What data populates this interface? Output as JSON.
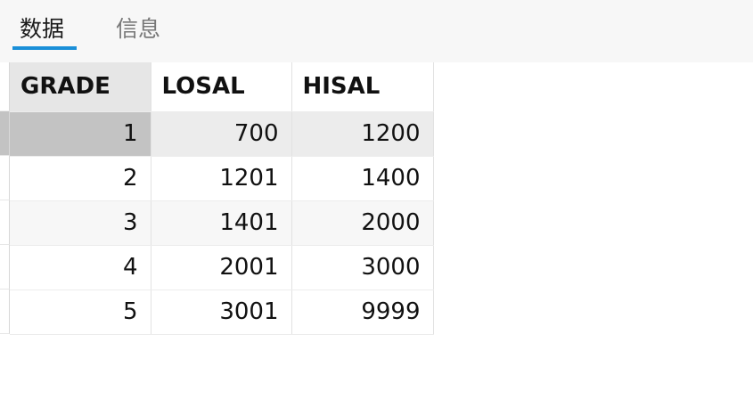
{
  "tabs": [
    {
      "label": "数据",
      "active": true
    },
    {
      "label": "信息",
      "active": false
    }
  ],
  "grid": {
    "columns": [
      "GRADE",
      "LOSAL",
      "HISAL"
    ],
    "rows": [
      [
        "1",
        "700",
        "1200"
      ],
      [
        "2",
        "1201",
        "1400"
      ],
      [
        "3",
        "1401",
        "2000"
      ],
      [
        "4",
        "2001",
        "3000"
      ],
      [
        "5",
        "3001",
        "9999"
      ]
    ],
    "selected_row": 0,
    "selected_column": 0
  },
  "colors": {
    "accent": "#1a8fd8",
    "selected_cell": "#c3c3c3",
    "selected_row": "#ececec",
    "tabbar_bg": "#f7f7f7"
  }
}
